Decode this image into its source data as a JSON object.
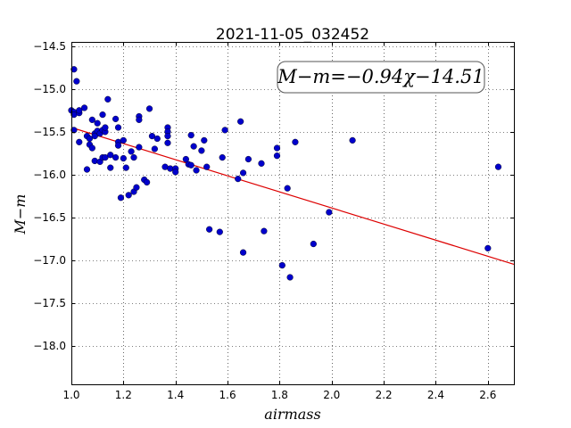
{
  "chart_data": {
    "type": "scatter",
    "title": "2021-11-05_032452",
    "xlabel": "airmass",
    "ylabel": "M−m",
    "xlim": [
      1.0,
      2.7
    ],
    "ylim": [
      -18.45,
      -14.45
    ],
    "y_inverted": true,
    "grid": true,
    "x_ticks": [
      "1.0",
      "1.2",
      "1.4",
      "1.6",
      "1.8",
      "2.0",
      "2.2",
      "2.4",
      "2.6"
    ],
    "x_tick_values": [
      1.0,
      1.2,
      1.4,
      1.6,
      1.8,
      2.0,
      2.2,
      2.4,
      2.6
    ],
    "y_ticks": [
      "−14.5",
      "−15.0",
      "−15.5",
      "−16.0",
      "−16.5",
      "−17.0",
      "−17.5",
      "−18.0"
    ],
    "y_tick_values": [
      -14.5,
      -15.0,
      -15.5,
      -16.0,
      -16.5,
      -17.0,
      -17.5,
      -18.0
    ],
    "annotation": "M−m=−0.94χ−14.51",
    "fit": {
      "slope": -0.94,
      "intercept": -14.51,
      "color": "#dd0000"
    },
    "marker_color": "#0000cc",
    "points": [
      [
        1.0,
        -15.25
      ],
      [
        1.01,
        -15.27
      ],
      [
        1.01,
        -14.77
      ],
      [
        1.02,
        -14.91
      ],
      [
        1.01,
        -15.48
      ],
      [
        1.01,
        -15.3
      ],
      [
        1.03,
        -15.28
      ],
      [
        1.03,
        -15.25
      ],
      [
        1.03,
        -15.62
      ],
      [
        1.05,
        -15.22
      ],
      [
        1.06,
        -15.55
      ],
      [
        1.06,
        -15.94
      ],
      [
        1.07,
        -15.58
      ],
      [
        1.07,
        -15.65
      ],
      [
        1.08,
        -15.36
      ],
      [
        1.08,
        -15.69
      ],
      [
        1.09,
        -15.52
      ],
      [
        1.09,
        -15.55
      ],
      [
        1.09,
        -15.84
      ],
      [
        1.1,
        -15.4
      ],
      [
        1.1,
        -15.49
      ],
      [
        1.11,
        -15.52
      ],
      [
        1.11,
        -15.85
      ],
      [
        1.12,
        -15.48
      ],
      [
        1.12,
        -15.8
      ],
      [
        1.12,
        -15.3
      ],
      [
        1.13,
        -15.5
      ],
      [
        1.13,
        -15.45
      ],
      [
        1.13,
        -15.8
      ],
      [
        1.14,
        -15.12
      ],
      [
        1.15,
        -15.92
      ],
      [
        1.15,
        -15.77
      ],
      [
        1.17,
        -15.8
      ],
      [
        1.17,
        -15.35
      ],
      [
        1.18,
        -15.62
      ],
      [
        1.18,
        -15.66
      ],
      [
        1.18,
        -15.45
      ],
      [
        1.19,
        -16.27
      ],
      [
        1.2,
        -15.81
      ],
      [
        1.2,
        -15.6
      ],
      [
        1.21,
        -15.92
      ],
      [
        1.22,
        -16.24
      ],
      [
        1.23,
        -15.73
      ],
      [
        1.24,
        -15.8
      ],
      [
        1.24,
        -16.2
      ],
      [
        1.25,
        -16.15
      ],
      [
        1.26,
        -15.68
      ],
      [
        1.26,
        -15.32
      ],
      [
        1.26,
        -15.36
      ],
      [
        1.28,
        -16.06
      ],
      [
        1.29,
        -16.09
      ],
      [
        1.3,
        -15.23
      ],
      [
        1.31,
        -15.55
      ],
      [
        1.32,
        -15.7
      ],
      [
        1.33,
        -15.58
      ],
      [
        1.36,
        -15.91
      ],
      [
        1.37,
        -15.45
      ],
      [
        1.37,
        -15.5
      ],
      [
        1.37,
        -15.55
      ],
      [
        1.37,
        -15.63
      ],
      [
        1.38,
        -15.93
      ],
      [
        1.4,
        -15.93
      ],
      [
        1.4,
        -15.97
      ],
      [
        1.44,
        -15.82
      ],
      [
        1.45,
        -15.88
      ],
      [
        1.46,
        -15.89
      ],
      [
        1.46,
        -15.54
      ],
      [
        1.47,
        -15.67
      ],
      [
        1.48,
        -15.95
      ],
      [
        1.5,
        -15.72
      ],
      [
        1.51,
        -15.6
      ],
      [
        1.52,
        -15.91
      ],
      [
        1.53,
        -16.64
      ],
      [
        1.57,
        -16.67
      ],
      [
        1.58,
        -15.8
      ],
      [
        1.59,
        -15.48
      ],
      [
        1.64,
        -16.05
      ],
      [
        1.65,
        -15.38
      ],
      [
        1.66,
        -15.98
      ],
      [
        1.66,
        -16.91
      ],
      [
        1.68,
        -15.82
      ],
      [
        1.73,
        -15.87
      ],
      [
        1.74,
        -16.66
      ],
      [
        1.79,
        -15.78
      ],
      [
        1.79,
        -15.69
      ],
      [
        1.81,
        -17.06
      ],
      [
        1.83,
        -16.16
      ],
      [
        1.84,
        -17.2
      ],
      [
        1.86,
        -15.62
      ],
      [
        1.93,
        -16.81
      ],
      [
        1.99,
        -16.44
      ],
      [
        2.08,
        -15.6
      ],
      [
        2.6,
        -16.86
      ],
      [
        2.64,
        -15.91
      ]
    ]
  }
}
